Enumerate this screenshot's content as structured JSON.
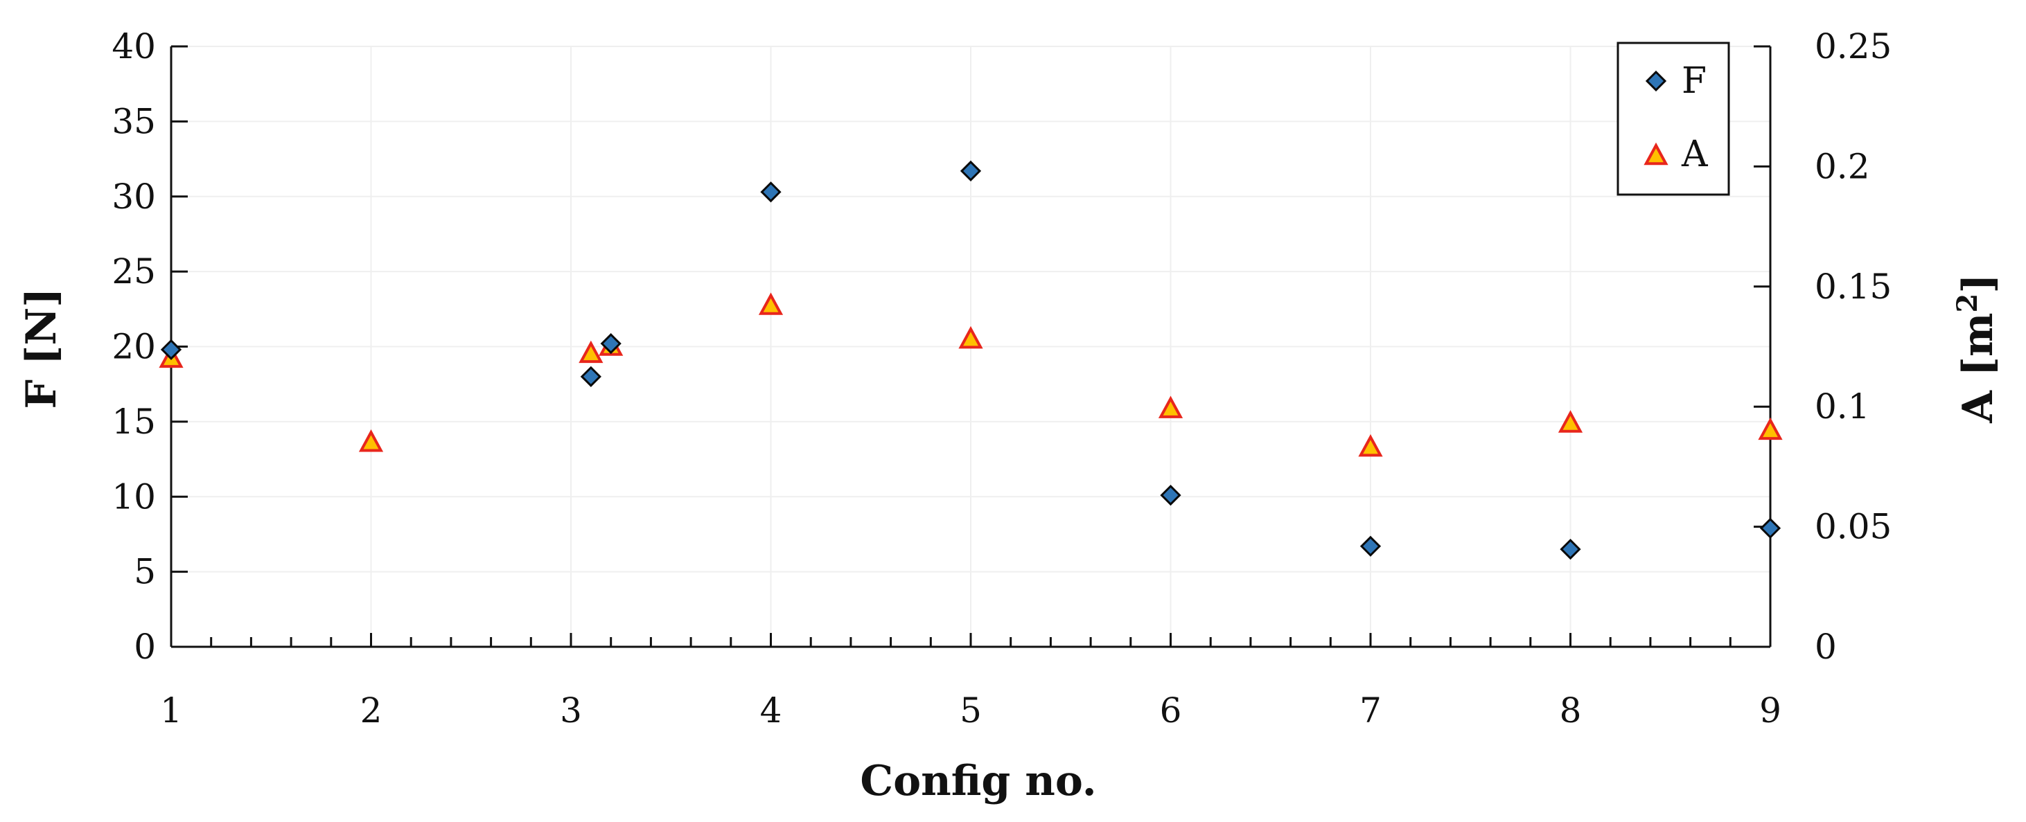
{
  "chart_data": {
    "type": "scatter",
    "title": "",
    "xlabel": "Config no.",
    "ylabel": "F [N]",
    "y2label_base": "A [m",
    "y2label_sup": "2",
    "y2label_end": "]",
    "xlim": [
      1,
      9
    ],
    "ylim": [
      0,
      40
    ],
    "y2lim": [
      0,
      0.25
    ],
    "grid": true,
    "legend_position": "top-right",
    "x_ticks": [
      "1",
      "2",
      "3",
      "4",
      "5",
      "6",
      "7",
      "8",
      "9"
    ],
    "y_ticks": [
      "0",
      "5",
      "10",
      "15",
      "20",
      "25",
      "30",
      "35",
      "40"
    ],
    "y2_ticks": [
      "0",
      "0.05",
      "0.1",
      "0.15",
      "0.2",
      "0.25"
    ],
    "series": [
      {
        "name": "F",
        "axis": "left",
        "marker": "diamond",
        "color": "#2E75B6",
        "x": [
          1,
          3.1,
          3.2,
          4,
          5,
          6,
          7,
          8,
          9
        ],
        "y": [
          19.8,
          18.0,
          20.2,
          30.3,
          31.7,
          10.1,
          6.7,
          6.5,
          7.9
        ]
      },
      {
        "name": "A",
        "axis": "right",
        "marker": "triangle",
        "color": "#FFC000",
        "edge_color": "#E8261C",
        "x": [
          1,
          2,
          3.1,
          3.2,
          4,
          5,
          6,
          7,
          8,
          9
        ],
        "y": [
          0.12,
          0.085,
          0.122,
          0.125,
          0.142,
          0.128,
          0.099,
          0.083,
          0.093,
          0.09
        ]
      }
    ]
  }
}
